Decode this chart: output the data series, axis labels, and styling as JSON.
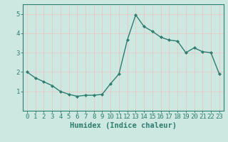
{
  "x": [
    0,
    1,
    2,
    3,
    4,
    5,
    6,
    7,
    8,
    9,
    10,
    11,
    12,
    13,
    14,
    15,
    16,
    17,
    18,
    19,
    20,
    21,
    22,
    23
  ],
  "y": [
    2.0,
    1.7,
    1.5,
    1.3,
    1.0,
    0.85,
    0.75,
    0.8,
    0.8,
    0.85,
    1.4,
    1.9,
    3.65,
    4.95,
    4.35,
    4.1,
    3.8,
    3.65,
    3.6,
    3.0,
    3.25,
    3.05,
    3.0,
    1.9
  ],
  "line_color": "#2e7d6e",
  "marker": "D",
  "markersize": 2.0,
  "linewidth": 1.0,
  "xlabel": "Humidex (Indice chaleur)",
  "ylim": [
    0,
    5.5
  ],
  "xlim": [
    -0.5,
    23.5
  ],
  "yticks": [
    1,
    2,
    3,
    4,
    5
  ],
  "xticks": [
    0,
    1,
    2,
    3,
    4,
    5,
    6,
    7,
    8,
    9,
    10,
    11,
    12,
    13,
    14,
    15,
    16,
    17,
    18,
    19,
    20,
    21,
    22,
    23
  ],
  "bg_color": "#cce8e0",
  "grid_color": "#e8c8c8",
  "xlabel_fontsize": 7.5,
  "tick_fontsize": 6.5
}
